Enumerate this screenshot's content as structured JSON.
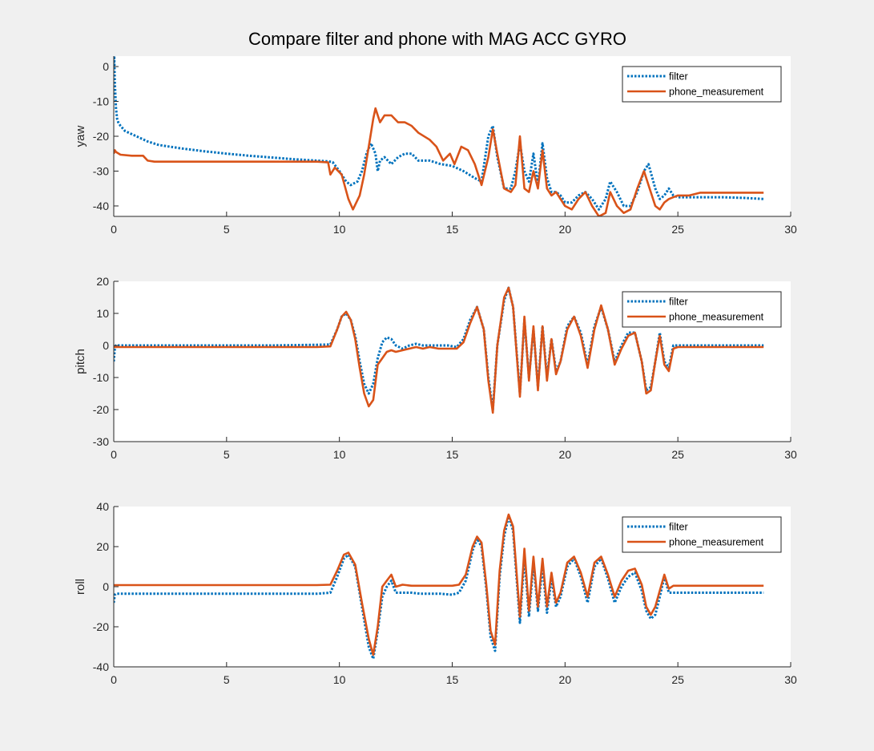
{
  "figure": {
    "title": "Compare filter and phone with MAG ACC GYRO"
  },
  "colors": {
    "filter": "#0072BD",
    "phone": "#D95319",
    "axes_bg": "#ffffff",
    "figure_bg": "#f0f0f0",
    "axis": "#262626"
  },
  "chart_data": [
    {
      "type": "line",
      "title": "",
      "ylabel": "yaw",
      "xlabel": "",
      "xlim": [
        0,
        30
      ],
      "ylim": [
        -43,
        3
      ],
      "xticks": [
        0,
        5,
        10,
        15,
        20,
        25,
        30
      ],
      "yticks": [
        -40,
        -30,
        -20,
        -10,
        0
      ],
      "legend": {
        "position": "top-right",
        "entries": [
          "filter",
          "phone_measurement"
        ]
      },
      "grid": false,
      "series": [
        {
          "name": "filter",
          "style": "dotted",
          "x": [
            0,
            0.02,
            0.05,
            0.1,
            0.15,
            0.2,
            0.3,
            0.5,
            1,
            1.5,
            2,
            3,
            4,
            5,
            6,
            7,
            8,
            9,
            9.5,
            9.7,
            10,
            10.3,
            10.5,
            10.8,
            11,
            11.2,
            11.4,
            11.6,
            11.7,
            11.8,
            12,
            12.3,
            12.6,
            12.9,
            13.2,
            13.5,
            14,
            14.5,
            15,
            15.5,
            16,
            16.3,
            16.6,
            16.8,
            17,
            17.3,
            17.6,
            17.8,
            18,
            18.2,
            18.4,
            18.6,
            18.8,
            19,
            19.2,
            19.4,
            19.6,
            19.8,
            20,
            20.3,
            20.6,
            20.9,
            21.2,
            21.5,
            21.8,
            22,
            22.3,
            22.6,
            22.9,
            23.2,
            23.5,
            23.7,
            24,
            24.2,
            24.4,
            24.6,
            24.8,
            25,
            25.5,
            26,
            27,
            28,
            28.8
          ],
          "y": [
            0,
            3,
            -5,
            -12,
            -15,
            -16,
            -17,
            -18.5,
            -20,
            -21.5,
            -22.5,
            -23.5,
            -24.3,
            -25,
            -25.6,
            -26.1,
            -26.6,
            -27,
            -27.2,
            -27.4,
            -30,
            -33,
            -34,
            -33,
            -30,
            -25,
            -22,
            -25,
            -30,
            -27,
            -26,
            -28,
            -26,
            -25,
            -25,
            -27,
            -27,
            -28,
            -28.5,
            -30,
            -32,
            -33,
            -20,
            -17,
            -26,
            -35,
            -35,
            -30,
            -22,
            -30,
            -33,
            -25,
            -34,
            -22,
            -32,
            -36,
            -36,
            -37,
            -39,
            -39,
            -37,
            -36,
            -38,
            -41,
            -38,
            -33,
            -36,
            -40,
            -40,
            -36,
            -30,
            -28,
            -35,
            -38,
            -37,
            -35,
            -37,
            -37.5,
            -37.5,
            -37.5,
            -37.5,
            -37.7,
            -38
          ]
        },
        {
          "name": "phone_measurement",
          "style": "solid",
          "x": [
            0,
            0.05,
            0.1,
            0.3,
            0.8,
            1.3,
            1.5,
            1.8,
            3,
            5,
            7,
            9,
            9.5,
            9.6,
            9.8,
            10.1,
            10.4,
            10.6,
            10.9,
            11.1,
            11.3,
            11.5,
            11.6,
            11.8,
            12,
            12.3,
            12.6,
            12.9,
            13.2,
            13.5,
            14,
            14.3,
            14.6,
            14.9,
            15.1,
            15.4,
            15.7,
            16,
            16.3,
            16.6,
            16.8,
            17,
            17.3,
            17.6,
            17.8,
            18,
            18.2,
            18.4,
            18.6,
            18.8,
            19,
            19.2,
            19.4,
            19.6,
            19.8,
            20,
            20.3,
            20.6,
            20.9,
            21.2,
            21.5,
            21.8,
            22,
            22.3,
            22.6,
            22.9,
            23.2,
            23.5,
            23.7,
            24,
            24.2,
            24.4,
            24.6,
            24.8,
            25,
            25.5,
            26,
            27,
            28,
            28.8
          ],
          "y": [
            -25,
            -24,
            -24.5,
            -25.3,
            -25.6,
            -25.6,
            -27,
            -27.3,
            -27.3,
            -27.3,
            -27.3,
            -27.3,
            -27.5,
            -31,
            -29,
            -31,
            -38,
            -41,
            -37,
            -31,
            -23,
            -15,
            -12,
            -16,
            -14,
            -14,
            -16,
            -16,
            -17,
            -19,
            -21,
            -23,
            -27,
            -25,
            -28,
            -23,
            -24,
            -28,
            -34,
            -26,
            -18,
            -25,
            -35,
            -36,
            -34,
            -20,
            -35,
            -36,
            -30,
            -35,
            -24,
            -35,
            -37,
            -36,
            -38,
            -40,
            -41,
            -38,
            -36,
            -40,
            -43,
            -42,
            -36,
            -40,
            -42,
            -41,
            -35,
            -30,
            -34,
            -40,
            -41,
            -39,
            -38,
            -37.5,
            -37,
            -37,
            -36.2,
            -36.2,
            -36.2,
            -36.2
          ]
        }
      ]
    },
    {
      "type": "line",
      "title": "",
      "ylabel": "pitch",
      "xlabel": "",
      "xlim": [
        0,
        30
      ],
      "ylim": [
        -30,
        20
      ],
      "xticks": [
        0,
        5,
        10,
        15,
        20,
        25,
        30
      ],
      "yticks": [
        -30,
        -20,
        -10,
        0,
        10,
        20
      ],
      "legend": {
        "position": "top-right",
        "entries": [
          "filter",
          "phone_measurement"
        ]
      },
      "grid": false,
      "series": [
        {
          "name": "filter",
          "style": "dotted",
          "x": [
            0,
            0.05,
            0.1,
            0.3,
            1,
            3,
            5,
            7,
            9,
            9.6,
            9.9,
            10.1,
            10.3,
            10.5,
            10.7,
            10.9,
            11.1,
            11.3,
            11.5,
            11.7,
            11.9,
            12.1,
            12.3,
            12.5,
            12.8,
            13.1,
            13.4,
            13.7,
            14,
            14.4,
            14.8,
            15.2,
            15.5,
            15.8,
            16.1,
            16.4,
            16.6,
            16.8,
            17,
            17.3,
            17.5,
            17.7,
            18,
            18.2,
            18.4,
            18.6,
            18.8,
            19,
            19.2,
            19.4,
            19.6,
            19.8,
            20.1,
            20.4,
            20.7,
            21,
            21.3,
            21.6,
            21.9,
            22.2,
            22.5,
            22.8,
            23.1,
            23.4,
            23.6,
            23.8,
            24,
            24.2,
            24.4,
            24.6,
            24.8,
            25,
            25.5,
            26,
            27,
            28,
            28.8
          ],
          "y": [
            -5,
            -1,
            0,
            0,
            0,
            0,
            0,
            0,
            0.2,
            0.3,
            5,
            9,
            10,
            8,
            3,
            -5,
            -12,
            -15,
            -12,
            -4,
            1,
            2.5,
            2,
            0,
            -1,
            0,
            0.5,
            0,
            0,
            0,
            0,
            -0.5,
            2,
            8,
            12,
            5,
            -10,
            -20,
            0,
            14,
            18,
            12,
            -15,
            8,
            -10,
            5,
            -13,
            6,
            -10,
            2,
            -8,
            -5,
            6,
            9,
            4,
            -6,
            6,
            12,
            5,
            -5,
            0,
            4,
            4,
            -5,
            -14,
            -13,
            -5,
            4,
            -5,
            -7,
            0,
            0,
            0,
            0,
            0,
            0,
            0
          ]
        },
        {
          "name": "phone_measurement",
          "style": "solid",
          "x": [
            0,
            0.1,
            0.3,
            1,
            3,
            5,
            7,
            9,
            9.6,
            9.9,
            10.1,
            10.3,
            10.5,
            10.7,
            10.9,
            11.1,
            11.3,
            11.5,
            11.7,
            11.9,
            12.1,
            12.3,
            12.5,
            12.8,
            13.1,
            13.4,
            13.7,
            14,
            14.4,
            14.8,
            15.2,
            15.5,
            15.8,
            16.1,
            16.4,
            16.6,
            16.8,
            17,
            17.3,
            17.5,
            17.7,
            18,
            18.2,
            18.4,
            18.6,
            18.8,
            19,
            19.2,
            19.4,
            19.6,
            19.8,
            20.1,
            20.4,
            20.7,
            21,
            21.3,
            21.6,
            21.9,
            22.2,
            22.5,
            22.8,
            23.1,
            23.4,
            23.6,
            23.8,
            24,
            24.2,
            24.4,
            24.6,
            24.8,
            25,
            25.5,
            26,
            27,
            28,
            28.8
          ],
          "y": [
            -0.5,
            -0.5,
            -0.5,
            -0.5,
            -0.5,
            -0.5,
            -0.5,
            -0.5,
            -0.3,
            5,
            9,
            10.5,
            8,
            2,
            -7,
            -15,
            -19,
            -17,
            -6,
            -4,
            -2,
            -1.5,
            -2,
            -1.5,
            -1,
            -0.5,
            -1,
            -0.5,
            -1,
            -1,
            -1,
            1,
            7,
            12,
            5,
            -11,
            -21,
            0,
            15,
            18,
            12,
            -16,
            9,
            -11,
            6,
            -14,
            6,
            -11,
            2,
            -9,
            -5,
            5,
            9,
            3,
            -7,
            5,
            12.5,
            5,
            -6,
            -1,
            3,
            4,
            -5,
            -15,
            -14,
            -5,
            3,
            -6,
            -8,
            -1,
            -0.5,
            -0.5,
            -0.5,
            -0.5,
            -0.5,
            -0.5
          ]
        }
      ]
    },
    {
      "type": "line",
      "title": "",
      "ylabel": "roll",
      "xlabel": "",
      "xlim": [
        0,
        30
      ],
      "ylim": [
        -40,
        40
      ],
      "xticks": [
        0,
        5,
        10,
        15,
        20,
        25,
        30
      ],
      "yticks": [
        -40,
        -20,
        0,
        20,
        40
      ],
      "legend": {
        "position": "top-right",
        "entries": [
          "filter",
          "phone_measurement"
        ]
      },
      "grid": false,
      "series": [
        {
          "name": "filter",
          "style": "dotted",
          "x": [
            0,
            0.05,
            0.1,
            0.3,
            1,
            3,
            5,
            7,
            9,
            9.6,
            9.9,
            10.2,
            10.4,
            10.7,
            11,
            11.3,
            11.5,
            11.7,
            11.9,
            12.1,
            12.3,
            12.5,
            12.8,
            13.2,
            13.6,
            14,
            14.5,
            15,
            15.3,
            15.6,
            15.9,
            16.1,
            16.3,
            16.5,
            16.7,
            16.9,
            17.1,
            17.3,
            17.5,
            17.7,
            18,
            18.2,
            18.4,
            18.6,
            18.8,
            19,
            19.2,
            19.4,
            19.6,
            19.8,
            20.1,
            20.4,
            20.7,
            21,
            21.3,
            21.6,
            21.9,
            22.2,
            22.5,
            22.8,
            23.1,
            23.4,
            23.6,
            23.8,
            24,
            24.2,
            24.4,
            24.6,
            24.8,
            25,
            25.5,
            26,
            27,
            28,
            28.8
          ],
          "y": [
            -8,
            -4,
            -3.5,
            -3.5,
            -3.5,
            -3.5,
            -3.5,
            -3.5,
            -3.5,
            -3,
            5,
            14,
            16,
            10,
            -10,
            -30,
            -36,
            -22,
            -5,
            0,
            3,
            -3,
            -3,
            -3,
            -3.5,
            -3.5,
            -3.5,
            -4,
            -3,
            3,
            18,
            24,
            20,
            0,
            -25,
            -32,
            5,
            25,
            35,
            28,
            -18,
            15,
            -15,
            12,
            -12,
            10,
            -13,
            4,
            -10,
            -5,
            10,
            14,
            5,
            -8,
            10,
            14,
            4,
            -8,
            0,
            5,
            7,
            -2,
            -12,
            -16,
            -14,
            -5,
            5,
            -3,
            -3,
            -3,
            -3,
            -3,
            -3,
            -3,
            -3
          ]
        },
        {
          "name": "phone_measurement",
          "style": "solid",
          "x": [
            0,
            0.1,
            0.3,
            1,
            3,
            5,
            7,
            9,
            9.6,
            9.9,
            10.2,
            10.4,
            10.7,
            11,
            11.3,
            11.5,
            11.7,
            11.9,
            12.1,
            12.3,
            12.5,
            12.8,
            13.2,
            13.6,
            14,
            14.5,
            15,
            15.3,
            15.6,
            15.9,
            16.1,
            16.3,
            16.5,
            16.7,
            16.9,
            17.1,
            17.3,
            17.5,
            17.7,
            18,
            18.2,
            18.4,
            18.6,
            18.8,
            19,
            19.2,
            19.4,
            19.6,
            19.8,
            20.1,
            20.4,
            20.7,
            21,
            21.3,
            21.6,
            21.9,
            22.2,
            22.5,
            22.8,
            23.1,
            23.4,
            23.6,
            23.8,
            24,
            24.2,
            24.4,
            24.6,
            24.8,
            25,
            25.5,
            26,
            27,
            28,
            28.8
          ],
          "y": [
            0.8,
            0.8,
            0.8,
            0.8,
            0.8,
            0.8,
            0.8,
            0.8,
            1,
            8,
            16,
            17,
            11,
            -8,
            -26,
            -34,
            -20,
            0,
            3,
            6,
            0,
            1,
            0.5,
            0.5,
            0.5,
            0.5,
            0.5,
            1,
            6,
            20,
            25,
            22,
            2,
            -22,
            -29,
            8,
            28,
            36,
            30,
            -15,
            19,
            -12,
            15,
            -10,
            14,
            -10,
            7,
            -8,
            -3,
            12,
            15,
            7,
            -5,
            12,
            15,
            6,
            -5,
            3,
            8,
            9,
            1,
            -10,
            -14,
            -10,
            -2,
            6,
            -1,
            0.5,
            0.5,
            0.5,
            0.5,
            0.5,
            0.5,
            0.5
          ]
        }
      ]
    }
  ]
}
